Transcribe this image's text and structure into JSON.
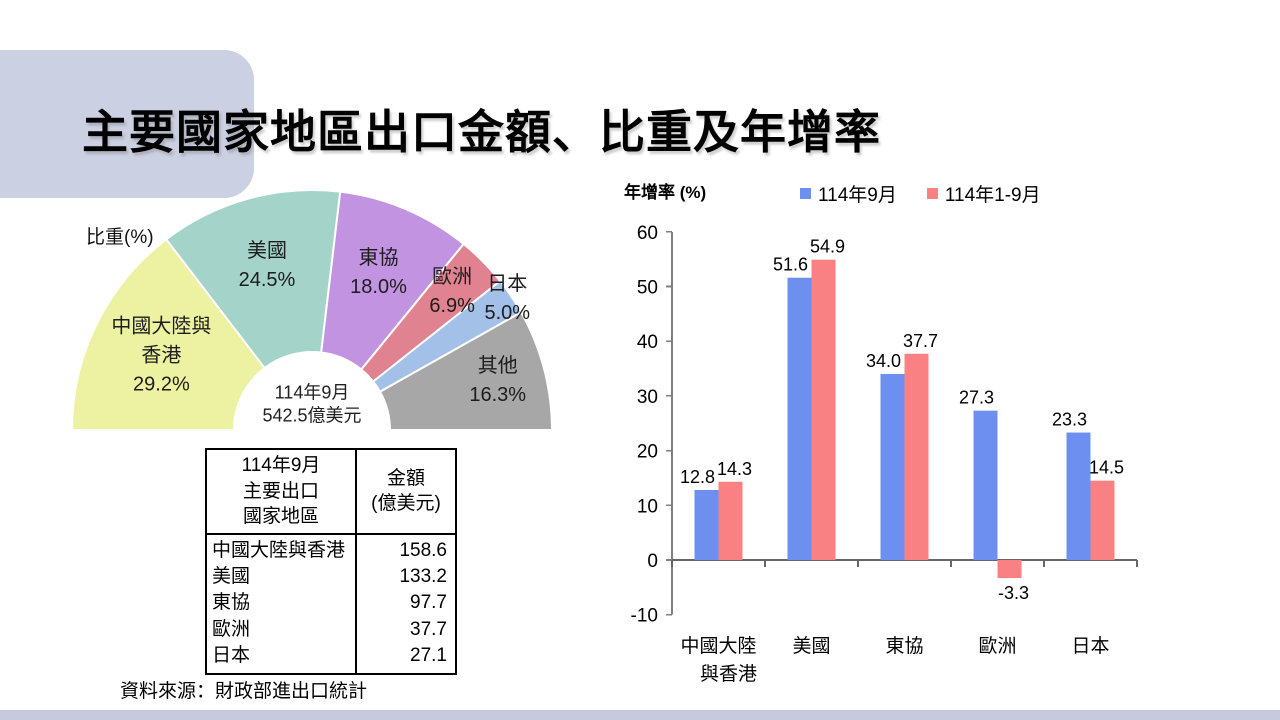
{
  "title": "主要國家地區出口金額、比重及年增率",
  "footer": {
    "source": "資料來源：財政部進出口統計"
  },
  "theme": {
    "accent_shape_color": "#cbd0e2",
    "bottom_bar_color": "#c5cade",
    "series_blue": "#6d8ff0",
    "series_red": "#f98184"
  },
  "chart_data": [
    {
      "type": "pie",
      "variant": "half-donut",
      "title": "比重(%)",
      "center_label": "114年9月\n542.5億美元",
      "unit": "%",
      "labels": [
        "中國大陸與\n香港",
        "美國",
        "東協",
        "歐洲",
        "日本",
        "其他"
      ],
      "values": [
        29.2,
        24.5,
        18.0,
        6.9,
        5.0,
        16.3
      ],
      "colors": [
        "#edf2a2",
        "#a3d3c9",
        "#c193e0",
        "#e0828f",
        "#a2c0e8",
        "#a7a7a7"
      ],
      "legend_position": "none"
    },
    {
      "type": "bar",
      "title": "年增率 (%)",
      "categories": [
        "中國大陸\n與香港",
        "美國",
        "東協",
        "歐洲",
        "日本"
      ],
      "series": [
        {
          "name": "114年9月",
          "color": "#6d8ff0",
          "values": [
            12.8,
            51.6,
            34.0,
            27.3,
            23.3
          ]
        },
        {
          "name": "114年1-9月",
          "color": "#f98184",
          "values": [
            14.3,
            54.9,
            37.7,
            -3.3,
            14.5
          ]
        }
      ],
      "ylim": [
        -10,
        60
      ],
      "yticks": [
        60,
        50,
        40,
        30,
        20,
        10,
        0,
        -10
      ],
      "grid": false,
      "legend_position": "top"
    }
  ],
  "table": {
    "headers": [
      "114年9月\n主要出口\n國家地區",
      "金額\n(億美元)"
    ],
    "rows": [
      [
        "中國大陸與香港",
        "158.6"
      ],
      [
        "美國",
        "133.2"
      ],
      [
        "東協",
        "97.7"
      ],
      [
        "歐洲",
        "37.7"
      ],
      [
        "日本",
        "27.1"
      ]
    ]
  }
}
